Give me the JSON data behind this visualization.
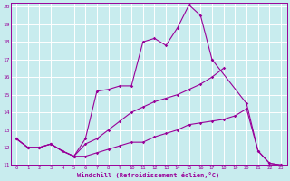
{
  "xlabel": "Windchill (Refroidissement éolien,°C)",
  "background_color": "#c8ecee",
  "grid_color": "#ffffff",
  "line_color": "#990099",
  "xlim": [
    -0.5,
    23.5
  ],
  "ylim": [
    11,
    20.2
  ],
  "yticks": [
    11,
    12,
    13,
    14,
    15,
    16,
    17,
    18,
    19,
    20
  ],
  "xticks": [
    0,
    1,
    2,
    3,
    4,
    5,
    6,
    7,
    8,
    9,
    10,
    11,
    12,
    13,
    14,
    15,
    16,
    17,
    18,
    19,
    20,
    21,
    22,
    23
  ],
  "line1_x": [
    0,
    1,
    2,
    3,
    4,
    5,
    6,
    7,
    8,
    9,
    10,
    11,
    12,
    13,
    14,
    15,
    16,
    17
  ],
  "line1_y": [
    12.5,
    12.0,
    12.0,
    12.2,
    11.8,
    11.5,
    12.5,
    15.2,
    15.3,
    15.5,
    15.5,
    18.0,
    18.2,
    17.8,
    18.8,
    20.1,
    19.5,
    17.0
  ],
  "line2_x": [
    0,
    1,
    2,
    3,
    4,
    5,
    6,
    7,
    8,
    9,
    10,
    11,
    12,
    13,
    14,
    15,
    16,
    17,
    18
  ],
  "line2_y": [
    12.5,
    12.0,
    12.0,
    12.2,
    11.8,
    11.5,
    12.2,
    12.5,
    13.0,
    13.5,
    14.0,
    14.3,
    14.6,
    14.8,
    15.0,
    15.3,
    15.6,
    16.0,
    16.5
  ],
  "line3_x": [
    0,
    1,
    2,
    3,
    4,
    5,
    6,
    7,
    8,
    9,
    10,
    11,
    12,
    13,
    14,
    15,
    16,
    17,
    18,
    19,
    20,
    21,
    22,
    23
  ],
  "line3_y": [
    12.5,
    12.0,
    12.0,
    12.2,
    11.8,
    11.5,
    11.5,
    11.7,
    11.9,
    12.1,
    12.3,
    12.3,
    12.6,
    12.8,
    13.0,
    13.3,
    13.4,
    13.5,
    13.6,
    13.8,
    14.2,
    11.8,
    11.1,
    11.0
  ],
  "line4_x": [
    17,
    20,
    21,
    22,
    23
  ],
  "line4_y": [
    17.0,
    14.5,
    11.8,
    11.1,
    11.0
  ]
}
